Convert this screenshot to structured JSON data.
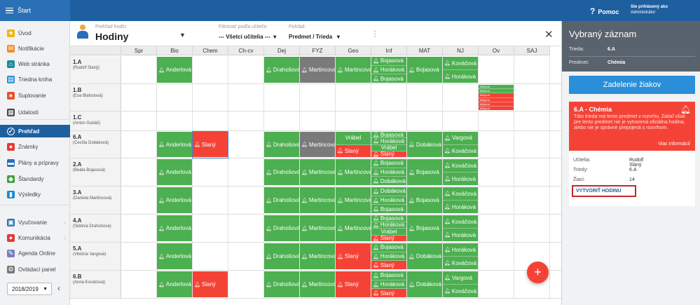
{
  "topbar": {
    "start_label": "Štart",
    "help_label": "Pomoc",
    "help_icon": "?",
    "user_line1": "Ste prihlásený ako",
    "user_line2": "Administrátor",
    "color": "#1e5fa0"
  },
  "sidebar": {
    "items": [
      {
        "label": "Úvod",
        "icon": "star-icon",
        "glyph": "★",
        "color": "#f5b400"
      },
      {
        "label": "Notifikácie",
        "icon": "mail-icon",
        "glyph": "✉",
        "color": "#f28c28"
      },
      {
        "label": "Web stránka",
        "icon": "home-icon",
        "glyph": "⌂",
        "color": "#1a8a9a"
      },
      {
        "label": "Triedna kniha",
        "icon": "book-icon",
        "glyph": "▤",
        "color": "#2a8fd8"
      },
      {
        "label": "Suplovanie",
        "icon": "user-swap-icon",
        "glyph": "●",
        "color": "#e8542c"
      },
      {
        "label": "Udalosti",
        "icon": "calendar-icon",
        "glyph": "▦",
        "color": "#444"
      },
      {
        "label": "Prehľad",
        "icon": "check-circle-icon",
        "glyph": "✓",
        "color": "#1e5fa0"
      },
      {
        "label": "Známky",
        "icon": "grade-icon",
        "glyph": "●",
        "color": "#e53935"
      },
      {
        "label": "Plány a prípravy",
        "icon": "plan-icon",
        "glyph": "▬",
        "color": "#2a70b6"
      },
      {
        "label": "Štandardy",
        "icon": "shield-icon",
        "glyph": "◆",
        "color": "#43a047"
      },
      {
        "label": "Výsledky",
        "icon": "bar-chart-icon",
        "glyph": "▮",
        "color": "#1a8ad4"
      },
      {
        "label": "Vyučovanie",
        "icon": "briefcase-icon",
        "glyph": "▣",
        "color": "#2a70b6"
      },
      {
        "label": "Komunikácia",
        "icon": "chat-icon",
        "glyph": "●",
        "color": "#e53935"
      },
      {
        "label": "Agenda Online",
        "icon": "pen-icon",
        "glyph": "✎",
        "color": "#7d7dbb"
      },
      {
        "label": "Ovládací panel",
        "icon": "gear-icon",
        "glyph": "⚙",
        "color": "#777"
      }
    ],
    "year": "2018/2019"
  },
  "header": {
    "view_sub": "Prehľad hodín",
    "view_title": "Hodiny",
    "teacher_filter_label": "Filtrovať podľa učiteľa:",
    "teacher_filter_value": "--- Všetci učitelia ---",
    "view_label": "Pohľad:",
    "view_value": "Predmet / Trieda"
  },
  "grid": {
    "columns": [
      "Spr",
      "Bio",
      "Chem",
      "Ch-cv",
      "Dej",
      "FYZ",
      "Geo",
      "Inf",
      "MAT",
      "NJ",
      "Ov",
      "SAJ"
    ],
    "rows": [
      {
        "cls": "1.A",
        "teacher": "(Rudolf Slaný)",
        "cells": [
          {
            "col": 4,
            "segs": [
              {
                "t": "Drahošová",
                "c": "g"
              }
            ]
          },
          {
            "col": 5,
            "segs": [
              {
                "t": "Martincová",
                "c": "x"
              }
            ]
          },
          {
            "col": 6,
            "segs": [
              {
                "t": "Martincová",
                "c": "g"
              }
            ]
          },
          {
            "col": 7,
            "segs": [
              {
                "t": "Bojasová",
                "c": "g"
              },
              {
                "t": "Horáková",
                "c": "g"
              },
              {
                "t": "Bojasová",
                "c": "g"
              }
            ]
          },
          {
            "col": 8,
            "segs": [
              {
                "t": "Bojasová",
                "c": "g"
              }
            ]
          },
          {
            "col": 9,
            "segs": [
              {
                "t": "Kováčová",
                "c": "g"
              },
              {
                "t": "Horáková",
                "c": "g"
              }
            ]
          },
          {
            "col": 1,
            "segs": [
              {
                "t": "Anderlová",
                "c": "g"
              }
            ]
          }
        ]
      },
      {
        "cls": "1.B",
        "teacher": "(Eva Blahutová)",
        "cells": [
          {
            "col": 10,
            "segs": [
              {
                "t": "Mlčjorot",
                "c": "g",
                "tiny": true
              },
              {
                "t": "Mlčjorot",
                "c": "g",
                "tiny": true
              },
              {
                "t": "Mlčjorot",
                "c": "r",
                "tiny": true
              },
              {
                "t": "Mlčjorot",
                "c": "r",
                "tiny": true
              },
              {
                "t": "Mlčjorot",
                "c": "r",
                "tiny": true
              },
              {
                "t": "Mlčjorot",
                "c": "r",
                "tiny": true
              }
            ]
          }
        ]
      },
      {
        "cls": "1.C",
        "teacher": "(Anton Gubáš)",
        "cells": []
      },
      {
        "cls": "6.A",
        "teacher": "(Cecília Dobáková)",
        "cells": [
          {
            "col": 1,
            "segs": [
              {
                "t": "Anderlová",
                "c": "g"
              }
            ]
          },
          {
            "col": 2,
            "segs": [
              {
                "t": "Slaný",
                "c": "r"
              }
            ]
          },
          {
            "col": 4,
            "segs": [
              {
                "t": "Drahošová",
                "c": "g"
              }
            ]
          },
          {
            "col": 5,
            "segs": [
              {
                "t": "Martincová",
                "c": "x"
              }
            ]
          },
          {
            "col": 6,
            "segs": [
              {
                "t": "Vrábel",
                "c": "g",
                "center": true
              },
              {
                "t": "Slaný",
                "c": "r"
              }
            ]
          },
          {
            "col": 7,
            "segs": [
              {
                "t": "Bojasová",
                "c": "g"
              },
              {
                "t": "Horáková",
                "c": "g"
              },
              {
                "t": "Vrábel",
                "c": "g",
                "center": true
              },
              {
                "t": "Slaný",
                "c": "r"
              }
            ]
          },
          {
            "col": 8,
            "segs": [
              {
                "t": "Dobáková",
                "c": "g"
              }
            ]
          },
          {
            "col": 9,
            "segs": [
              {
                "t": "Vargová",
                "c": "g"
              },
              {
                "t": "Kováčová",
                "c": "g"
              }
            ]
          }
        ]
      },
      {
        "cls": "2.A",
        "teacher": "(Beáta Bojasová)",
        "cells": [
          {
            "col": 1,
            "segs": [
              {
                "t": "Anderlová",
                "c": "g"
              }
            ]
          },
          {
            "col": 4,
            "segs": [
              {
                "t": "Drahošová",
                "c": "g"
              }
            ]
          },
          {
            "col": 5,
            "segs": [
              {
                "t": "Martincová",
                "c": "g"
              }
            ]
          },
          {
            "col": 6,
            "segs": [
              {
                "t": "Martincová",
                "c": "g"
              }
            ]
          },
          {
            "col": 7,
            "segs": [
              {
                "t": "Bojasová",
                "c": "g"
              },
              {
                "t": "Horáková",
                "c": "g"
              },
              {
                "t": "Dobáková",
                "c": "g"
              }
            ]
          },
          {
            "col": 8,
            "segs": [
              {
                "t": "Bojasová",
                "c": "g"
              }
            ]
          },
          {
            "col": 9,
            "segs": [
              {
                "t": "Kováčová",
                "c": "g"
              },
              {
                "t": "Horáková",
                "c": "g"
              }
            ]
          }
        ]
      },
      {
        "cls": "3.A",
        "teacher": "(Daniela Martincová)",
        "cells": [
          {
            "col": 1,
            "segs": [
              {
                "t": "Anderlová",
                "c": "g"
              }
            ]
          },
          {
            "col": 4,
            "segs": [
              {
                "t": "Drahošová",
                "c": "g"
              }
            ]
          },
          {
            "col": 5,
            "segs": [
              {
                "t": "Martincová",
                "c": "g"
              }
            ]
          },
          {
            "col": 6,
            "segs": [
              {
                "t": "Martincová",
                "c": "g"
              }
            ]
          },
          {
            "col": 7,
            "segs": [
              {
                "t": "Dobáková",
                "c": "g"
              },
              {
                "t": "Horáková",
                "c": "g"
              },
              {
                "t": "Bojasová",
                "c": "g"
              }
            ]
          },
          {
            "col": 8,
            "segs": [
              {
                "t": "Bojasová",
                "c": "g"
              }
            ]
          },
          {
            "col": 9,
            "segs": [
              {
                "t": "Kováčová",
                "c": "g"
              },
              {
                "t": "Horáková",
                "c": "g"
              }
            ]
          }
        ]
      },
      {
        "cls": "4.A",
        "teacher": "(Sidónia Drahošová)",
        "cells": [
          {
            "col": 1,
            "segs": [
              {
                "t": "Anderlová",
                "c": "g"
              }
            ]
          },
          {
            "col": 4,
            "segs": [
              {
                "t": "Drahošová",
                "c": "g"
              }
            ]
          },
          {
            "col": 5,
            "segs": [
              {
                "t": "Martincová",
                "c": "g"
              }
            ]
          },
          {
            "col": 6,
            "segs": [
              {
                "t": "Martincová",
                "c": "g"
              }
            ]
          },
          {
            "col": 7,
            "segs": [
              {
                "t": "Bojasová",
                "c": "g"
              },
              {
                "t": "Horáková",
                "c": "g"
              },
              {
                "t": "Vrábel",
                "c": "g",
                "center": true
              },
              {
                "t": "Slaný",
                "c": "r"
              }
            ]
          },
          {
            "col": 8,
            "segs": [
              {
                "t": "Bojasová",
                "c": "g"
              }
            ]
          },
          {
            "col": 9,
            "segs": [
              {
                "t": "Kováčová",
                "c": "g"
              },
              {
                "t": "Horáková",
                "c": "g"
              }
            ]
          }
        ]
      },
      {
        "cls": "5.A",
        "teacher": "(Viktória Vargová)",
        "cells": [
          {
            "col": 1,
            "segs": [
              {
                "t": "Anderlová",
                "c": "g"
              }
            ]
          },
          {
            "col": 4,
            "segs": [
              {
                "t": "Drahošová",
                "c": "g"
              }
            ]
          },
          {
            "col": 5,
            "segs": [
              {
                "t": "Martincová",
                "c": "g"
              }
            ]
          },
          {
            "col": 6,
            "segs": [
              {
                "t": "Slaný",
                "c": "r"
              }
            ]
          },
          {
            "col": 7,
            "segs": [
              {
                "t": "Bojasová",
                "c": "g"
              },
              {
                "t": "Horáková",
                "c": "g"
              },
              {
                "t": "Slaný",
                "c": "r"
              }
            ]
          },
          {
            "col": 8,
            "segs": [
              {
                "t": "Dobáková",
                "c": "g"
              }
            ]
          },
          {
            "col": 9,
            "segs": [
              {
                "t": "Horáková",
                "c": "g"
              },
              {
                "t": "Kováčová",
                "c": "g"
              }
            ]
          }
        ]
      },
      {
        "cls": "6.B",
        "teacher": "(Anna Kováčová)",
        "cells": [
          {
            "col": 1,
            "segs": [
              {
                "t": "Anderlová",
                "c": "g"
              }
            ]
          },
          {
            "col": 2,
            "segs": [
              {
                "t": "Slaný",
                "c": "r"
              }
            ]
          },
          {
            "col": 4,
            "segs": [
              {
                "t": "Drahošová",
                "c": "g"
              }
            ]
          },
          {
            "col": 5,
            "segs": [
              {
                "t": "Martincová",
                "c": "g"
              }
            ]
          },
          {
            "col": 6,
            "segs": [
              {
                "t": "Slaný",
                "c": "r"
              }
            ]
          },
          {
            "col": 7,
            "segs": [
              {
                "t": "Bojasová",
                "c": "g"
              },
              {
                "t": "Horáková",
                "c": "g"
              },
              {
                "t": "Slaný",
                "c": "r"
              }
            ]
          },
          {
            "col": 8,
            "segs": [
              {
                "t": "Dobáková",
                "c": "g"
              }
            ]
          },
          {
            "col": 9,
            "segs": [
              {
                "t": "Vargová",
                "c": "g"
              },
              {
                "t": "Kováčová",
                "c": "g"
              }
            ]
          }
        ]
      }
    ]
  },
  "fab": {
    "label": "+"
  },
  "panel": {
    "title": "Vybraný záznam",
    "class_key": "Trieda:",
    "class_value": "6.A",
    "subject_key": "Predmet:",
    "subject_value": "Chémia",
    "assign_button": "Zadelenie žiakov",
    "alert_title": "6.A - Chémia",
    "alert_text": "Táto trieda má tento predmet v rozvrhu. Zatiaľ však pre tento predmet nie je vytvorená oficiálna hodina, alebo nie je správne prepojená s rozvrhom.",
    "alert_more": "Viac informácií",
    "teacher_key": "Učitelia:",
    "teacher_value": "Rudolf Slaný",
    "classes_key": "Triedy:",
    "classes_value": "6.A",
    "students_key": "Žiaci:",
    "students_value": "14",
    "create_button": "VYTVORIŤ HODINU"
  },
  "colors": {
    "green": "#4caf50",
    "red": "#f44336",
    "grey": "#7a7a7a",
    "accent": "#2a8fd8"
  }
}
